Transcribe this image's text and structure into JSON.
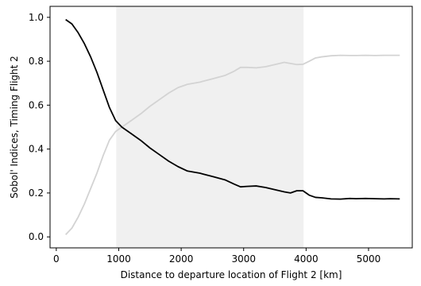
{
  "chart_data": {
    "type": "line",
    "title": "",
    "xlabel": "Distance to departure location of Flight 2 [km]",
    "ylabel": "Sobol' Indices, Timing Flight 2",
    "xlim": [
      -100,
      5700
    ],
    "ylim": [
      -0.05,
      1.05
    ],
    "x_ticks": [
      0,
      1000,
      2000,
      3000,
      4000,
      5000
    ],
    "y_ticks": [
      0.0,
      0.2,
      0.4,
      0.6,
      0.8,
      1.0
    ],
    "x_tick_labels": [
      "0",
      "1000",
      "2000",
      "3000",
      "4000",
      "5000"
    ],
    "y_tick_labels": [
      "0.0",
      "0.2",
      "0.4",
      "0.6",
      "0.8",
      "1.0"
    ],
    "grid": false,
    "legend": "none",
    "shaded_region": {
      "x_start": 960,
      "x_end": 3960,
      "color": "#f0f0f0"
    },
    "series": [
      {
        "color": "#000000",
        "x": [
          150,
          250,
          350,
          450,
          550,
          650,
          750,
          850,
          950,
          1050,
          1200,
          1350,
          1500,
          1650,
          1800,
          1950,
          2100,
          2300,
          2500,
          2700,
          2850,
          2950,
          3050,
          3200,
          3350,
          3500,
          3650,
          3750,
          3850,
          3950,
          4050,
          4150,
          4250,
          4400,
          4550,
          4700,
          4800,
          4950,
          5100,
          5250,
          5350,
          5500
        ],
        "y": [
          0.99,
          0.97,
          0.93,
          0.88,
          0.82,
          0.75,
          0.67,
          0.59,
          0.53,
          0.5,
          0.47,
          0.44,
          0.405,
          0.375,
          0.345,
          0.32,
          0.3,
          0.29,
          0.275,
          0.26,
          0.24,
          0.228,
          0.23,
          0.232,
          0.225,
          0.215,
          0.205,
          0.2,
          0.21,
          0.21,
          0.19,
          0.18,
          0.178,
          0.173,
          0.172,
          0.175,
          0.174,
          0.175,
          0.174,
          0.173,
          0.174,
          0.173
        ]
      },
      {
        "color": "#d3d3d3",
        "x": [
          150,
          250,
          350,
          450,
          550,
          650,
          750,
          850,
          950,
          1050,
          1200,
          1350,
          1500,
          1650,
          1800,
          1950,
          2100,
          2300,
          2500,
          2700,
          2850,
          2950,
          3050,
          3200,
          3350,
          3500,
          3650,
          3750,
          3850,
          3950,
          4050,
          4150,
          4250,
          4400,
          4550,
          4700,
          4800,
          4950,
          5100,
          5250,
          5350,
          5500
        ],
        "y": [
          0.01,
          0.04,
          0.09,
          0.15,
          0.22,
          0.29,
          0.37,
          0.44,
          0.48,
          0.5,
          0.53,
          0.56,
          0.595,
          0.625,
          0.655,
          0.68,
          0.695,
          0.705,
          0.72,
          0.735,
          0.755,
          0.772,
          0.772,
          0.77,
          0.775,
          0.785,
          0.795,
          0.79,
          0.785,
          0.786,
          0.8,
          0.815,
          0.82,
          0.825,
          0.827,
          0.826,
          0.826,
          0.827,
          0.826,
          0.827,
          0.827,
          0.827
        ]
      }
    ]
  }
}
